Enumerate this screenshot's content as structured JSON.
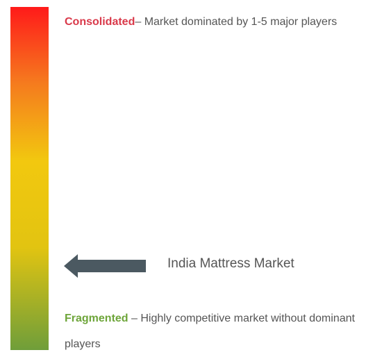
{
  "scale": {
    "top_color": "#ff1a1a",
    "mid_color": "#f2c80f",
    "bottom_color": "#6f9e3a"
  },
  "consolidated": {
    "keyword": "Consolidated",
    "description": "– Market dominated by 1-5 major players",
    "color": "#d9394a"
  },
  "fragmented": {
    "keyword": "Fragmented",
    "description": " – Highly competitive market without dominant players",
    "color": "#6ea53a"
  },
  "marker": {
    "label": "India Mattress Market",
    "icon": "arrow-left-icon",
    "color": "#4b5961"
  }
}
